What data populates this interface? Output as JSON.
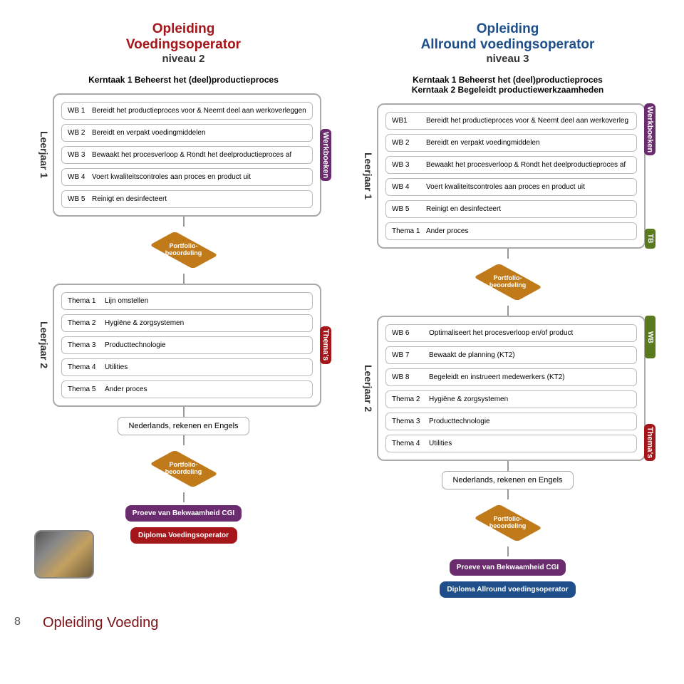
{
  "colors": {
    "red": "#a4161a",
    "purple": "#6a2c6f",
    "blue": "#1e4f8a",
    "green": "#5a7a1e",
    "orange": "#c07a1a",
    "gray_border": "#aaaaaa",
    "connector": "#999999"
  },
  "left": {
    "title1": "Opleiding",
    "title2": "Voedingsoperator",
    "level": "niveau 2",
    "kerntaken": [
      "Kerntaak 1 Beheerst het (deel)productieproces"
    ],
    "year1_label": "Leerjaar 1",
    "year1_tag": "Werkboeken",
    "year1_items": [
      {
        "code": "WB 1",
        "text": "Bereidt het productieproces voor & Neemt deel aan werkoverleggen"
      },
      {
        "code": "WB 2",
        "text": "Bereidt en verpakt voedingmiddelen"
      },
      {
        "code": "WB 3",
        "text": "Bewaakt het procesverloop & Rondt het deelproductieproces af"
      },
      {
        "code": "WB 4",
        "text": "Voert kwaliteitscontroles aan proces en product uit"
      },
      {
        "code": "WB 5",
        "text": "Reinigt en desinfecteert"
      }
    ],
    "year2_label": "Leerjaar 2",
    "year2_tag": "Thema's",
    "year2_items": [
      {
        "code": "Thema 1",
        "text": "Lijn omstellen"
      },
      {
        "code": "Thema 2",
        "text": "Hygiëne & zorgsystemen"
      },
      {
        "code": "Thema 3",
        "text": "Producttechnologie"
      },
      {
        "code": "Thema 4",
        "text": "Utilities"
      },
      {
        "code": "Thema 5",
        "text": "Ander proces"
      }
    ],
    "lang": "Nederlands, rekenen en Engels",
    "proeve": "Proeve van Bekwaamheid CGI",
    "diploma": "Diploma Voedingsoperator"
  },
  "right": {
    "title1": "Opleiding",
    "title2": "Allround voedingsoperator",
    "level": "niveau 3",
    "kerntaken": [
      "Kerntaak 1 Beheerst het (deel)productieproces",
      "Kerntaak 2 Begeleidt productiewerkzaamheden"
    ],
    "year1_label": "Leerjaar 1",
    "year1_tag": "Werkboeken",
    "year1_tag2": "TB",
    "year1_items": [
      {
        "code": "WB1",
        "text": "Bereidt het productieproces voor & Neemt deel aan werkoverleg"
      },
      {
        "code": "WB 2",
        "text": "Bereidt en verpakt voedingmiddelen"
      },
      {
        "code": "WB 3",
        "text": "Bewaakt het procesverloop & Rondt het deelproductieproces af"
      },
      {
        "code": "WB 4",
        "text": "Voert kwaliteitscontroles aan proces en product uit"
      },
      {
        "code": "WB 5",
        "text": "Reinigt en desinfecteert"
      },
      {
        "code": "Thema 1",
        "text": "Ander proces"
      }
    ],
    "year2_label": "Leerjaar 2",
    "year2_tag1": "WB",
    "year2_tag2": "Thema's",
    "year2_items": [
      {
        "code": "WB 6",
        "text": "Optimaliseert het procesverloop en/of product"
      },
      {
        "code": "WB 7",
        "text": "Bewaakt de planning (KT2)"
      },
      {
        "code": "WB 8",
        "text": "Begeleidt en instrueert medewerkers (KT2)"
      },
      {
        "code": "Thema 2",
        "text": "Hygiëne & zorgsystemen"
      },
      {
        "code": "Thema 3",
        "text": "Producttechnologie"
      },
      {
        "code": "Thema 4",
        "text": "Utilities"
      }
    ],
    "lang": "Nederlands, rekenen en Engels",
    "proeve": "Proeve van Bekwaamheid CGI",
    "diploma": "Diploma Allround voedingsoperator"
  },
  "portfolio": "Portfolio-beoordeling",
  "footer_title": "Opleiding Voeding",
  "page_number": "8"
}
